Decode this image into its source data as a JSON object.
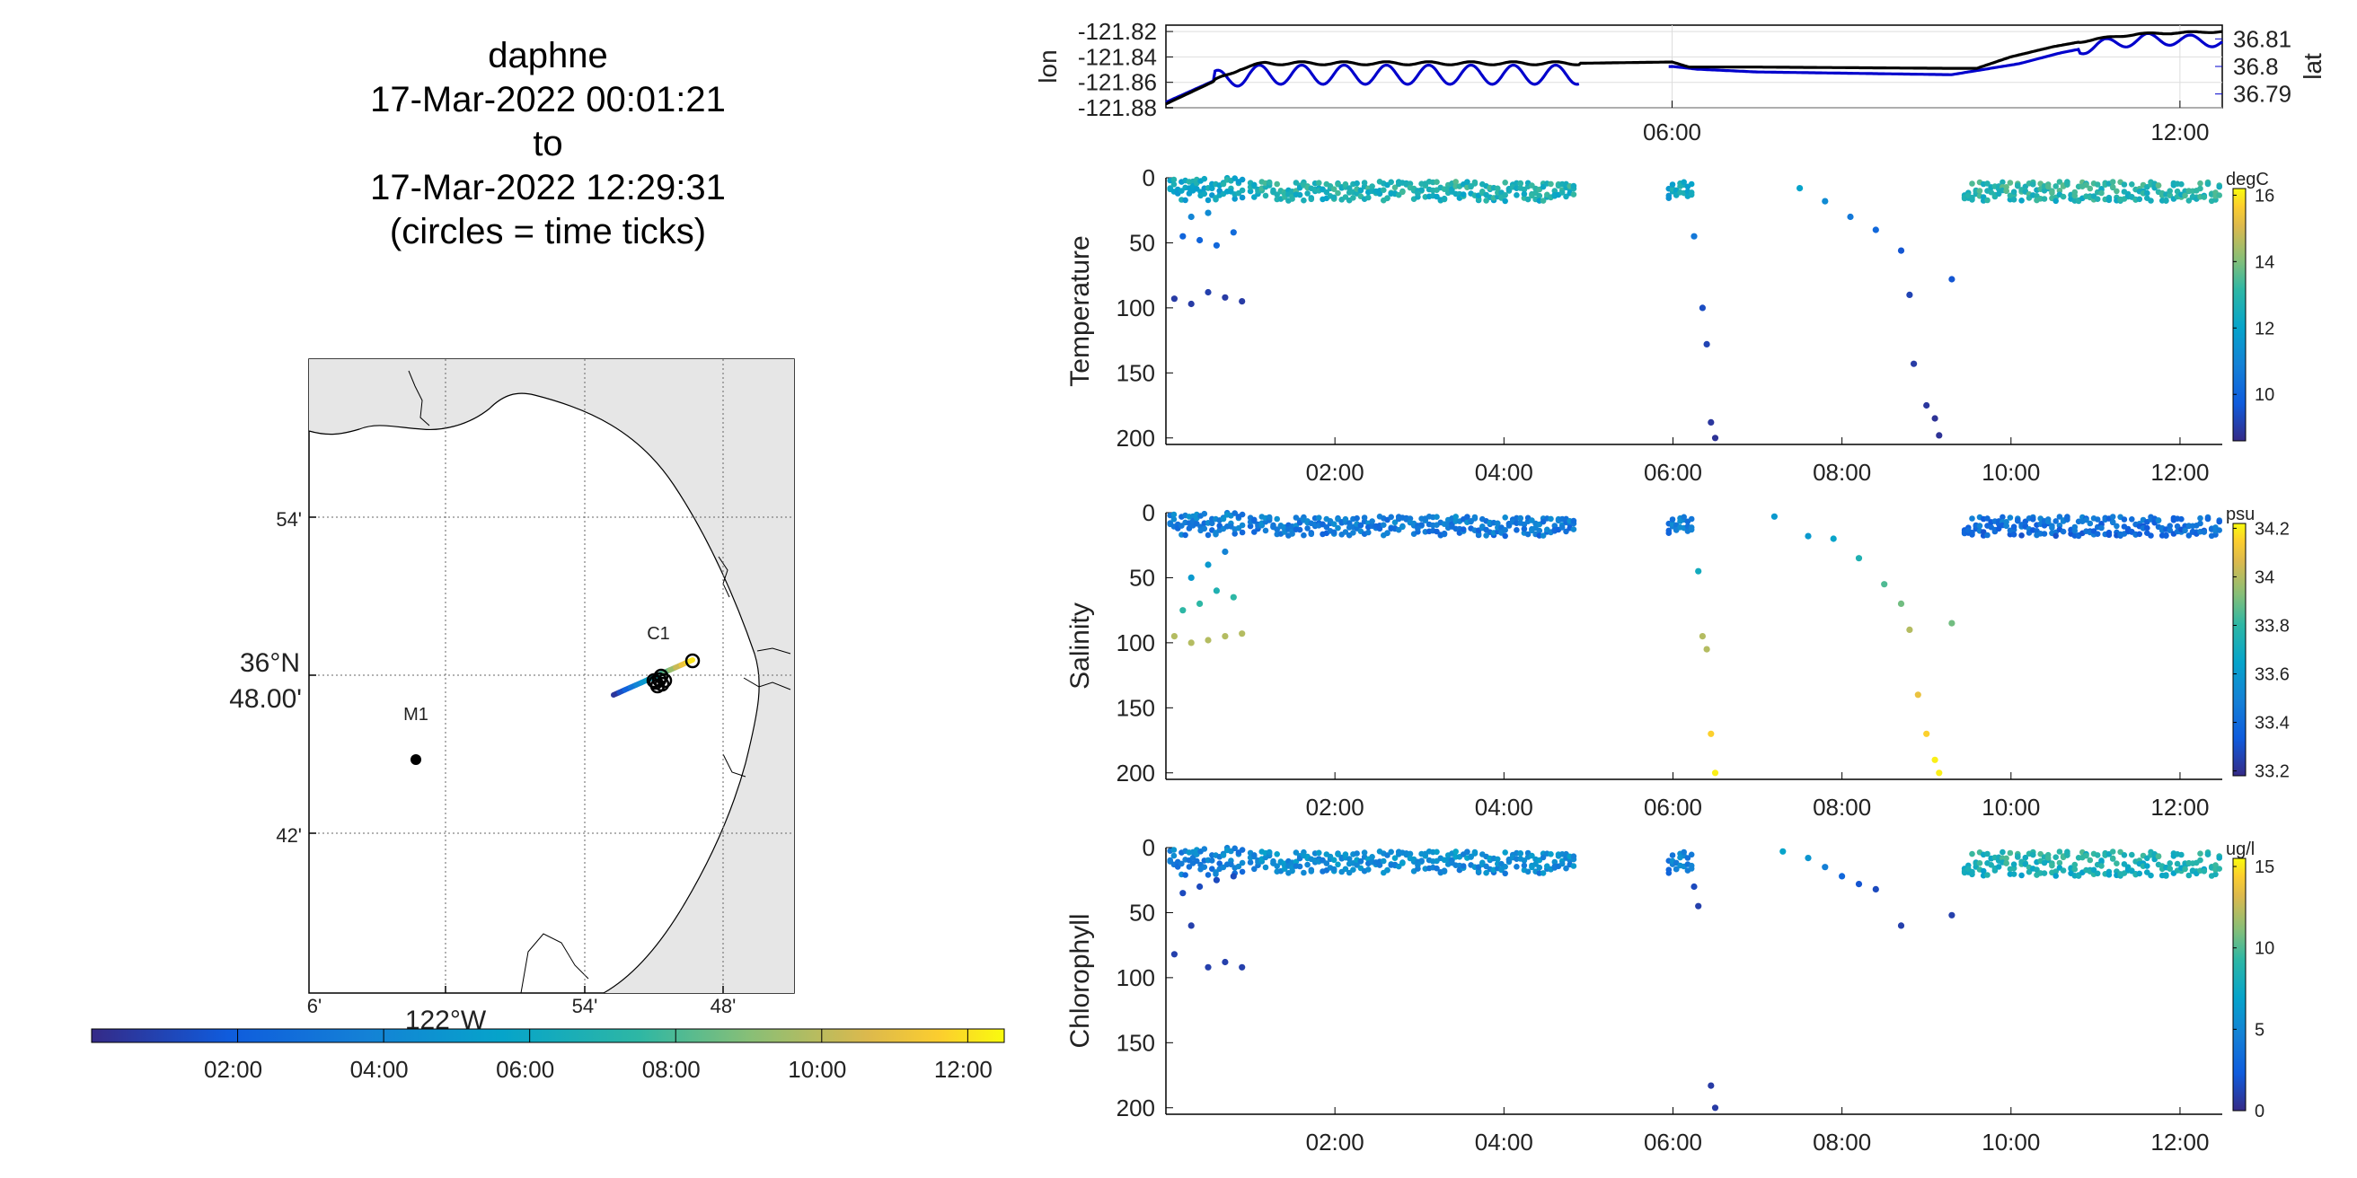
{
  "title": {
    "lines": [
      "daphne",
      "17-Mar-2022 00:01:21",
      "to",
      "17-Mar-2022 12:29:31",
      "(circles = time ticks)"
    ]
  },
  "map": {
    "lat_ticks": [
      "54'",
      "48.00'",
      "42'"
    ],
    "lat_major_label": "36°N",
    "lon_ticks": [
      "6'",
      "54'",
      "48'"
    ],
    "lon_major_label": "122°W",
    "stations": [
      {
        "name": "M1"
      },
      {
        "name": "C1"
      }
    ],
    "land_color": "#e6e6e6"
  },
  "time_colorbar": {
    "ticks": [
      "02:00",
      "04:00",
      "06:00",
      "08:00",
      "10:00",
      "12:00"
    ]
  },
  "chart_data": [
    {
      "type": "line",
      "panel": "position",
      "ylabel_left": "lon",
      "ylabel_right": "lat",
      "left_ticks": [
        "-121.82",
        "-121.84",
        "-121.86",
        "-121.88"
      ],
      "right_ticks": [
        "36.81",
        "36.8",
        "36.79"
      ],
      "x_ticks": [
        "06:00",
        "12:00"
      ],
      "ylim_left": [
        -121.88,
        -121.815
      ],
      "ylim_right": [
        36.785,
        36.815
      ],
      "xlim_hours": [
        0.02,
        12.5
      ],
      "series": [
        {
          "name": "lon",
          "color": "#000000",
          "points": [
            [
              0.02,
              -121.877
            ],
            [
              0.5,
              -121.862
            ],
            [
              0.9,
              -121.849
            ],
            [
              1.2,
              -121.845
            ],
            [
              4.9,
              -121.845
            ],
            [
              6.0,
              -121.844
            ],
            [
              6.2,
              -121.848
            ],
            [
              7.0,
              -121.848
            ],
            [
              9.3,
              -121.849
            ],
            [
              9.6,
              -121.849
            ],
            [
              10.0,
              -121.84
            ],
            [
              10.5,
              -121.832
            ],
            [
              11.0,
              -121.826
            ],
            [
              11.5,
              -121.822
            ],
            [
              12.5,
              -121.82
            ]
          ]
        },
        {
          "name": "lat",
          "color": "#0000cc",
          "points": [
            [
              0.02,
              36.787
            ],
            [
              0.6,
              36.795
            ],
            [
              1.0,
              36.797
            ],
            [
              4.9,
              36.797
            ],
            [
              5.0,
              36.799
            ],
            [
              6.0,
              36.8
            ],
            [
              6.3,
              36.799
            ],
            [
              7.0,
              36.798
            ],
            [
              9.3,
              36.797
            ],
            [
              9.7,
              36.799
            ],
            [
              10.1,
              36.801
            ],
            [
              10.6,
              36.805
            ],
            [
              11.1,
              36.808
            ],
            [
              11.6,
              36.81
            ],
            [
              12.5,
              36.809
            ]
          ]
        }
      ]
    },
    {
      "type": "scatter",
      "panel": "temperature",
      "ylabel": "Temperature",
      "y_ticks": [
        "0",
        "50",
        "100",
        "150",
        "200"
      ],
      "x_ticks": [
        "02:00",
        "04:00",
        "06:00",
        "08:00",
        "10:00",
        "12:00"
      ],
      "ylim": [
        0,
        205
      ],
      "xlim_hours": [
        0.0,
        12.5
      ],
      "colorbar_unit": "degC",
      "colorbar_ticks": [
        "16",
        "14",
        "12",
        "10"
      ],
      "clim": [
        8.6,
        16.2
      ],
      "deep_points": [
        [
          0.1,
          93,
          9.0
        ],
        [
          0.3,
          97,
          9.0
        ],
        [
          0.5,
          88,
          9.1
        ],
        [
          0.7,
          92,
          9.0
        ],
        [
          0.9,
          95,
          9.0
        ],
        [
          0.2,
          45,
          10.0
        ],
        [
          0.4,
          48,
          10.0
        ],
        [
          0.6,
          52,
          10.1
        ],
        [
          0.8,
          42,
          10.2
        ],
        [
          0.3,
          30,
          11.0
        ],
        [
          0.5,
          27,
          11.2
        ],
        [
          6.25,
          45,
          10.6
        ],
        [
          6.35,
          100,
          9.4
        ],
        [
          6.4,
          128,
          9.2
        ],
        [
          6.45,
          188,
          8.9
        ],
        [
          6.5,
          200,
          8.8
        ],
        [
          7.5,
          8,
          12.0
        ],
        [
          7.8,
          18,
          11.2
        ],
        [
          8.1,
          30,
          10.6
        ],
        [
          8.4,
          40,
          10.1
        ],
        [
          8.7,
          56,
          9.6
        ],
        [
          8.8,
          90,
          9.2
        ],
        [
          8.85,
          143,
          9.0
        ],
        [
          9.0,
          175,
          8.9
        ],
        [
          9.1,
          185,
          8.8
        ],
        [
          9.15,
          198,
          8.8
        ],
        [
          9.3,
          78,
          9.6
        ]
      ],
      "band_runs": [
        [
          0.05,
          0.95,
          0,
          18,
          12.4
        ],
        [
          1.0,
          4.85,
          3,
          18,
          13.0
        ],
        [
          5.95,
          6.25,
          3,
          16,
          12.4
        ],
        [
          9.45,
          12.5,
          3,
          18,
          13.2
        ]
      ]
    },
    {
      "type": "scatter",
      "panel": "salinity",
      "ylabel": "Salinity",
      "y_ticks": [
        "0",
        "50",
        "100",
        "150",
        "200"
      ],
      "x_ticks": [
        "02:00",
        "04:00",
        "06:00",
        "08:00",
        "10:00",
        "12:00"
      ],
      "ylim": [
        0,
        205
      ],
      "xlim_hours": [
        0.0,
        12.5
      ],
      "colorbar_unit": "psu",
      "colorbar_ticks": [
        "34.2",
        "34",
        "33.8",
        "33.6",
        "33.4",
        "33.2"
      ],
      "clim": [
        33.18,
        34.22
      ],
      "deep_points": [
        [
          0.1,
          95,
          34.0
        ],
        [
          0.3,
          100,
          34.0
        ],
        [
          0.5,
          98,
          34.0
        ],
        [
          0.7,
          95,
          34.0
        ],
        [
          0.9,
          93,
          34.0
        ],
        [
          0.2,
          75,
          33.8
        ],
        [
          0.4,
          70,
          33.8
        ],
        [
          0.6,
          60,
          33.75
        ],
        [
          0.8,
          65,
          33.8
        ],
        [
          0.3,
          50,
          33.6
        ],
        [
          0.5,
          40,
          33.6
        ],
        [
          0.7,
          30,
          33.5
        ],
        [
          6.3,
          45,
          33.7
        ],
        [
          6.35,
          95,
          34.0
        ],
        [
          6.4,
          105,
          34.0
        ],
        [
          6.45,
          170,
          34.15
        ],
        [
          6.5,
          200,
          34.2
        ],
        [
          7.2,
          3,
          33.6
        ],
        [
          7.6,
          18,
          33.6
        ],
        [
          7.9,
          20,
          33.65
        ],
        [
          8.2,
          35,
          33.75
        ],
        [
          8.5,
          55,
          33.85
        ],
        [
          8.7,
          70,
          33.9
        ],
        [
          8.8,
          90,
          34.0
        ],
        [
          8.9,
          140,
          34.1
        ],
        [
          9.0,
          170,
          34.15
        ],
        [
          9.1,
          190,
          34.2
        ],
        [
          9.15,
          200,
          34.2
        ],
        [
          9.3,
          85,
          33.9
        ]
      ],
      "band_runs": [
        [
          0.05,
          0.95,
          0,
          18,
          33.5
        ],
        [
          1.0,
          4.85,
          3,
          18,
          33.5
        ],
        [
          5.95,
          6.25,
          3,
          16,
          33.5
        ],
        [
          9.45,
          12.5,
          3,
          18,
          33.45
        ]
      ]
    },
    {
      "type": "scatter",
      "panel": "chlorophyll",
      "ylabel": "Chlorophyll",
      "y_ticks": [
        "0",
        "50",
        "100",
        "150",
        "200"
      ],
      "x_ticks": [
        "02:00",
        "04:00",
        "06:00",
        "08:00",
        "10:00",
        "12:00"
      ],
      "ylim": [
        0,
        205
      ],
      "xlim_hours": [
        0.0,
        12.5
      ],
      "colorbar_unit": "ug/l",
      "colorbar_ticks": [
        "15",
        "10",
        "5",
        "0"
      ],
      "clim": [
        0,
        15.5
      ],
      "deep_points": [
        [
          0.1,
          82,
          1.0
        ],
        [
          0.3,
          60,
          1.0
        ],
        [
          0.5,
          92,
          1.0
        ],
        [
          0.7,
          88,
          1.0
        ],
        [
          0.9,
          92,
          1.0
        ],
        [
          0.2,
          35,
          1.5
        ],
        [
          0.4,
          30,
          1.5
        ],
        [
          0.6,
          25,
          1.5
        ],
        [
          0.8,
          22,
          1.5
        ],
        [
          6.25,
          30,
          1.5
        ],
        [
          6.3,
          45,
          1.0
        ],
        [
          6.45,
          183,
          0.8
        ],
        [
          6.5,
          200,
          0.8
        ],
        [
          7.3,
          3,
          7.0
        ],
        [
          7.6,
          8,
          6.0
        ],
        [
          7.8,
          15,
          4.5
        ],
        [
          8.0,
          22,
          3.0
        ],
        [
          8.2,
          28,
          2.0
        ],
        [
          8.4,
          32,
          1.5
        ],
        [
          8.7,
          60,
          1.0
        ],
        [
          9.3,
          52,
          1.0
        ]
      ],
      "band_runs": [
        [
          0.05,
          0.95,
          0,
          22,
          5.0
        ],
        [
          1.0,
          4.85,
          3,
          20,
          6.0
        ],
        [
          5.95,
          6.25,
          3,
          20,
          5.0
        ],
        [
          9.45,
          12.5,
          3,
          22,
          9.0
        ]
      ]
    }
  ]
}
